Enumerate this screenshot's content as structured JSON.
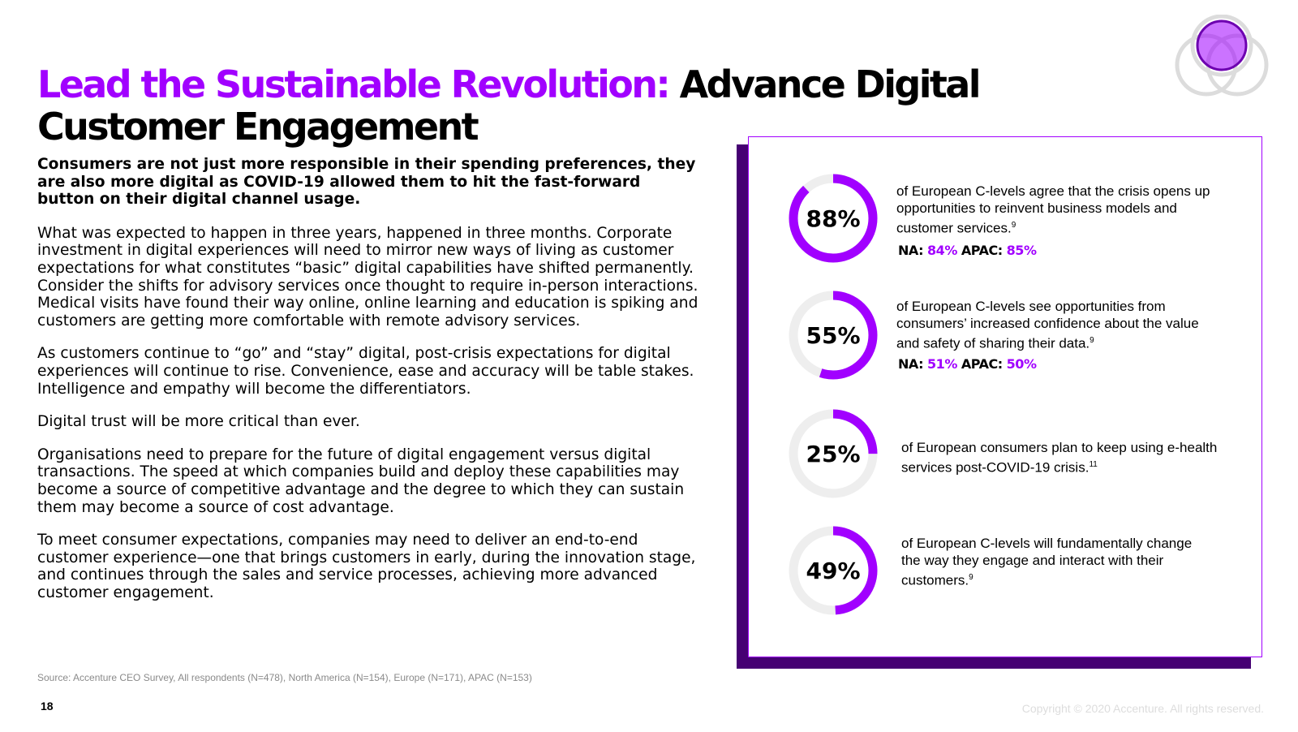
{
  "title": {
    "accent": "Lead the Sustainable Revolution:",
    "rest": "Advance Digital Customer Engagement"
  },
  "body": {
    "lead": "Consumers are not just more responsible in their spending preferences, they are also more digital as COVID-19 allowed them to hit the fast-forward button on their digital channel usage.",
    "paragraphs": [
      "What was expected to happen in three years, happened in three months. Corporate investment in digital experiences will need to mirror new ways of living as customer expectations for what constitutes “basic” digital capabilities have shifted permanently. Consider the shifts for advisory services once thought to require in-person interactions. Medical visits have found their way online, online learning and education is spiking and customers are getting more comfortable with remote advisory services.",
      "As customers continue to “go” and “stay” digital, post-crisis expectations for digital experiences will continue to rise. Convenience, ease and accuracy will be table stakes. Intelligence and empathy will become the differentiators.",
      "Digital trust will be more critical than ever.",
      "Organisations need to prepare for the future of digital engagement versus digital transactions. The speed at which companies build and deploy these capabilities may become a source of competitive advantage and the degree to which they can sustain them may become a source of cost advantage.",
      "To meet consumer expectations, companies may need to deliver an end-to-end customer experience—one that brings customers in early, during the innovation stage, and continues through the sales and service processes, achieving more advanced customer engagement."
    ]
  },
  "stats": [
    {
      "percent": "88%",
      "value": 88,
      "text": "of European C-levels agree that the crisis opens up opportunities to reinvent business models and customer services.",
      "note": "9",
      "na_label": "NA:",
      "na_value": "84%",
      "apac_label": "APAC:",
      "apac_value": "85%"
    },
    {
      "percent": "55%",
      "value": 55,
      "text": "of European C-levels see opportunities from consumers’ increased confidence about the value and safety of sharing their data.",
      "note": "9",
      "na_label": "NA:",
      "na_value": "51%",
      "apac_label": "APAC:",
      "apac_value": "50%"
    },
    {
      "percent": "25%",
      "value": 25,
      "text": "of European consumers plan to keep using e-health services post-COVID-19 crisis.",
      "note": "11"
    },
    {
      "percent": "49%",
      "value": 49,
      "text": "of European C-levels will fundamentally change the way they engage and interact with their customers.",
      "note": "9"
    }
  ],
  "source": "Source: Accenture CEO Survey, All respondents (N=478), North America (N=154), Europe (N=171), APAC (N=153)",
  "page_number": "18",
  "copyright": "Copyright © 2020 Accenture. All rights reserved.",
  "colors": {
    "accent": "#a100ff",
    "dark_purple": "#460073",
    "ring_track": "#eeeeee"
  }
}
